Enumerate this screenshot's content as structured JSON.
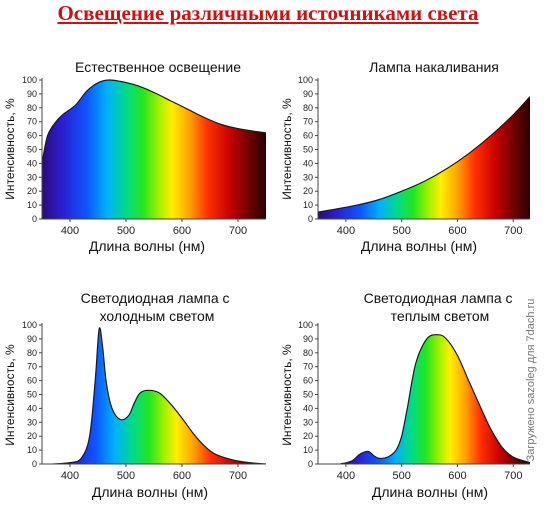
{
  "page": {
    "title": "Освещение различными источниками света",
    "watermark": "Загружено sazoleg для 7dach.ru"
  },
  "chart_data": [
    {
      "type": "area",
      "title": "Естественное освещение",
      "xlabel": "Длина волны (нм)",
      "ylabel": "Интенсивность, %",
      "xlim": [
        350,
        750
      ],
      "ylim": [
        0,
        100
      ],
      "xticks": [
        400,
        500,
        600,
        700
      ],
      "yticks": [
        0,
        10,
        20,
        30,
        40,
        50,
        60,
        70,
        80,
        90,
        100
      ],
      "fill": "spectrum",
      "x": [
        350,
        360,
        375,
        390,
        410,
        430,
        450,
        470,
        490,
        520,
        550,
        580,
        610,
        640,
        670,
        700,
        730,
        750
      ],
      "y": [
        40,
        60,
        70,
        76,
        82,
        92,
        98,
        100,
        99,
        96,
        91,
        85,
        79,
        73,
        68,
        65,
        63,
        62
      ]
    },
    {
      "type": "area",
      "title": "Лампа накаливания",
      "xlabel": "Длина волны (нм)",
      "ylabel": "Интенсивность, %",
      "xlim": [
        350,
        730
      ],
      "ylim": [
        0,
        100
      ],
      "xticks": [
        400,
        500,
        600,
        700
      ],
      "yticks": [
        0,
        10,
        20,
        30,
        40,
        50,
        60,
        70,
        80,
        90,
        100
      ],
      "fill": "spectrum",
      "x": [
        350,
        380,
        420,
        460,
        500,
        540,
        580,
        620,
        660,
        700,
        730
      ],
      "y": [
        5,
        7,
        10,
        14,
        20,
        27,
        36,
        47,
        60,
        75,
        88
      ]
    },
    {
      "type": "area",
      "title": "Светодиодная лампа с холодным светом",
      "xlabel": "Длина волны (нм)",
      "ylabel": "Интенсивность, %",
      "xlim": [
        350,
        750
      ],
      "ylim": [
        0,
        100
      ],
      "xticks": [
        400,
        500,
        600,
        700
      ],
      "yticks": [
        0,
        10,
        20,
        30,
        40,
        50,
        60,
        70,
        80,
        90,
        100
      ],
      "fill": "spectrum",
      "x": [
        370,
        400,
        420,
        435,
        445,
        452,
        458,
        465,
        475,
        490,
        505,
        515,
        525,
        540,
        560,
        580,
        600,
        620,
        640,
        660,
        690,
        720,
        750
      ],
      "y": [
        0,
        1,
        4,
        20,
        60,
        97,
        85,
        58,
        40,
        32,
        35,
        44,
        51,
        53,
        51,
        43,
        33,
        22,
        13,
        7,
        3,
        1,
        0
      ]
    },
    {
      "type": "area",
      "title": "Светодиодная лампа с теплым светом",
      "xlabel": "Длина волны (нм)",
      "ylabel": "Интенсивность, %",
      "xlim": [
        350,
        730
      ],
      "ylim": [
        0,
        100
      ],
      "xticks": [
        400,
        500,
        600,
        700
      ],
      "yticks": [
        0,
        10,
        20,
        30,
        40,
        50,
        60,
        70,
        80,
        90,
        100
      ],
      "fill": "spectrum",
      "x": [
        390,
        410,
        425,
        440,
        450,
        460,
        475,
        490,
        500,
        510,
        525,
        545,
        565,
        580,
        600,
        620,
        640,
        660,
        680,
        700,
        730
      ],
      "y": [
        0,
        2,
        7,
        9,
        6,
        4,
        5,
        10,
        20,
        40,
        72,
        90,
        93,
        90,
        78,
        60,
        42,
        25,
        12,
        5,
        1
      ]
    }
  ]
}
